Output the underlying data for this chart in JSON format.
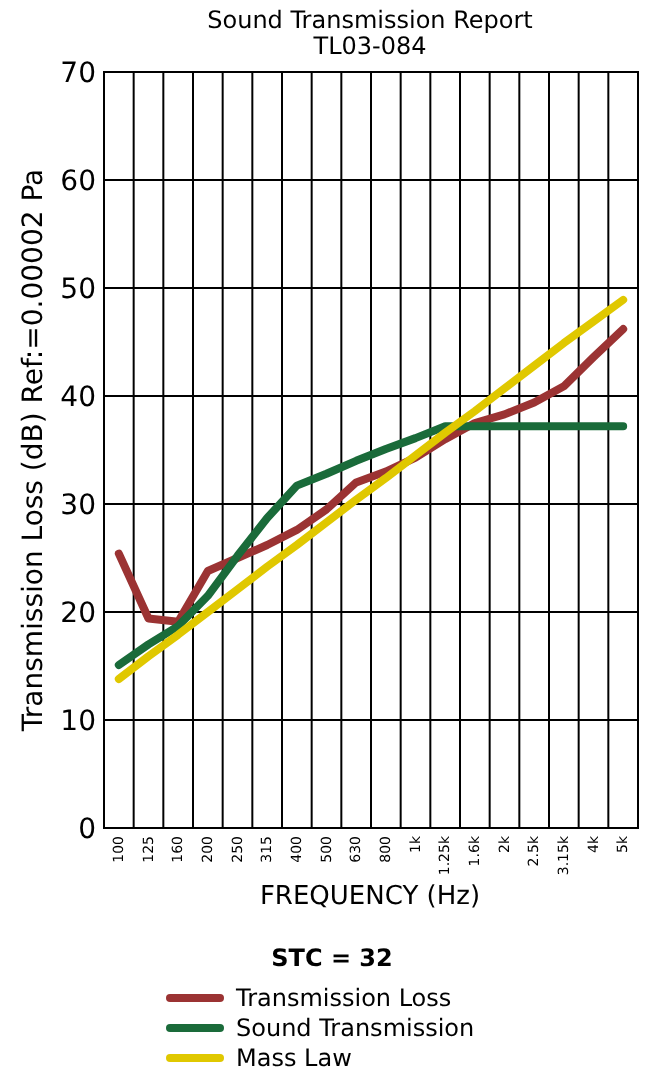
{
  "chart_data": {
    "type": "line",
    "title": "Sound Transmission Report",
    "subtitle": "TL03-084",
    "xlabel": "FREQUENCY (Hz)",
    "ylabel": "Transmission Loss (dB) Ref:=0.00002 Pa",
    "legend_title": "STC = 32",
    "categories": [
      "100",
      "125",
      "160",
      "200",
      "250",
      "315",
      "400",
      "500",
      "630",
      "800",
      "1k",
      "1.25k",
      "1.6k",
      "2k",
      "2.5k",
      "3.15k",
      "4k",
      "5k"
    ],
    "series": [
      {
        "name": "Transmission Loss",
        "color": "#9b3333",
        "values": [
          25.4,
          19.4,
          19.1,
          23.8,
          25.0,
          26.2,
          27.6,
          29.5,
          32.0,
          33.0,
          34.3,
          36.0,
          37.5,
          38.3,
          39.4,
          40.9,
          43.6,
          46.2
        ]
      },
      {
        "name": "Sound Transmission",
        "color": "#1a6b3a",
        "values": [
          15.1,
          17.0,
          18.7,
          21.5,
          25.2,
          28.7,
          31.7,
          32.8,
          34.0,
          35.1,
          36.1,
          37.2,
          37.2,
          37.2,
          37.2,
          37.2,
          37.2,
          37.2
        ]
      },
      {
        "name": "Mass Law",
        "color": "#e0c800",
        "values": [
          13.8,
          15.9,
          17.9,
          20.0,
          22.1,
          24.2,
          26.2,
          28.3,
          30.4,
          32.4,
          34.5,
          36.6,
          38.6,
          40.7,
          42.8,
          44.9,
          46.9,
          48.9
        ]
      }
    ],
    "ylim": [
      0,
      70
    ],
    "yticks": [
      0,
      10,
      20,
      30,
      40,
      50,
      60,
      70
    ],
    "grid": true,
    "legend": "bottom",
    "line_style": "solid",
    "marker": "none"
  }
}
